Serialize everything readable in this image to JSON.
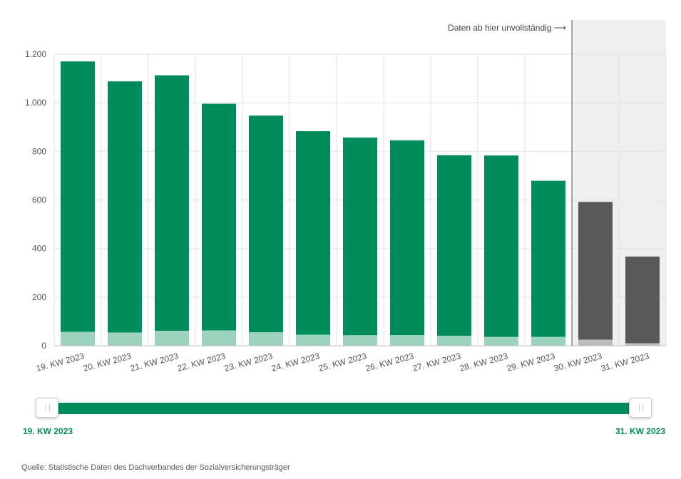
{
  "chart_data": {
    "type": "bar",
    "stacked": true,
    "categories": [
      "19. KW 2023",
      "20. KW 2023",
      "21. KW 2023",
      "22. KW 2023",
      "23. KW 2023",
      "24. KW 2023",
      "25. KW 2023",
      "26. KW 2023",
      "27. KW 2023",
      "28. KW 2023",
      "29. KW 2023",
      "30. KW 2023",
      "31. KW 2023"
    ],
    "series": [
      {
        "values": [
          57,
          54,
          61,
          63,
          55,
          45,
          43,
          44,
          41,
          36,
          36,
          25,
          10
        ]
      },
      {
        "values": [
          1113,
          1034,
          1052,
          933,
          892,
          838,
          814,
          801,
          743,
          747,
          643,
          567,
          357
        ]
      }
    ],
    "incomplete_from_index": 11,
    "incomplete_annotation": "Daten ab hier unvollständig ⟶",
    "ylim": [
      0,
      1200
    ],
    "yticks": [
      0,
      200,
      400,
      600,
      800,
      1000,
      1200
    ],
    "ytick_labels": [
      "0",
      "200",
      "400",
      "600",
      "800",
      "1.000",
      "1.200"
    ],
    "grid": true,
    "colors": {
      "dark_green": "#008c5a",
      "light_green": "#9dd3bd",
      "dark_gray": "#595959",
      "light_gray": "#bdbdbd",
      "incomplete_bg": "#efefef",
      "grid": "#e3e3e3"
    }
  },
  "slider": {
    "start_label": "19. KW 2023",
    "end_label": "31. KW 2023",
    "color": "#008c5a"
  },
  "source": "Quelle: Statistische Daten des Dachverbandes der Sozialversicherungsträger"
}
